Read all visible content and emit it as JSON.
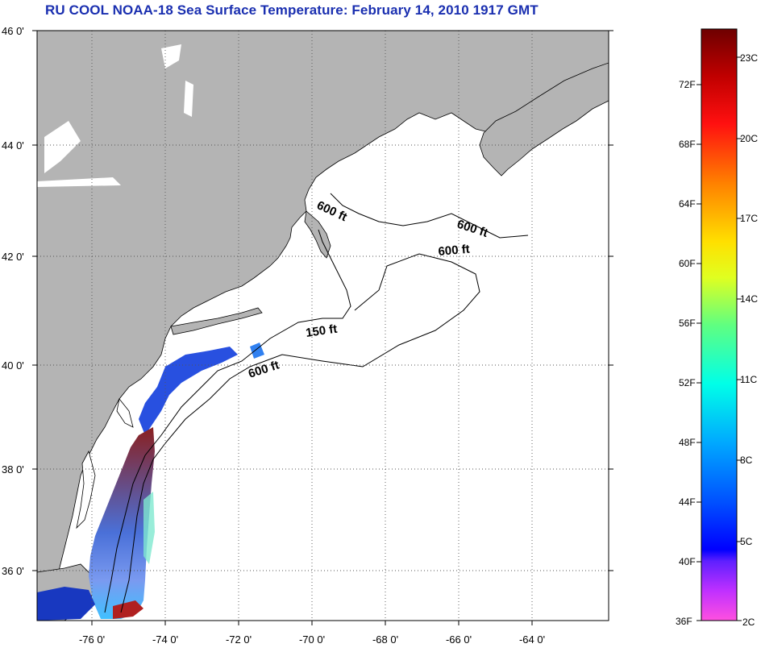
{
  "title": "RU COOL  NOAA-18  Sea Surface Temperature:  February 14, 2010 1917 GMT",
  "map": {
    "lat_labels": [
      "46 0'",
      "44 0'",
      "42 0'",
      "40 0'",
      "38 0'",
      "36 0'"
    ],
    "lon_labels": [
      "-76 0'",
      "-74 0'",
      "-72 0'",
      "-70 0'",
      "-68 0'",
      "-66 0'",
      "-64 0'"
    ],
    "contour_labels": [
      "600 ft",
      "600 ft",
      "600 ft",
      "150 ft",
      "600 ft"
    ],
    "colors": {
      "land": "#b4b4b4",
      "ocean_nodata": "#ffffff",
      "coast": "#000000",
      "grid": "#555555"
    }
  },
  "colorbar": {
    "fahrenheit_labels": [
      "72F",
      "68F",
      "64F",
      "60F",
      "56F",
      "52F",
      "48F",
      "44F",
      "40F",
      "36F"
    ],
    "celsius_labels": [
      "23C",
      "20C",
      "17C",
      "14C",
      "11C",
      "8C",
      "5C",
      "2C"
    ],
    "colors": [
      "#7a0000",
      "#c00000",
      "#ff0000",
      "#ff7a00",
      "#ffd000",
      "#ffff00",
      "#b8ff40",
      "#40ff90",
      "#00ffe0",
      "#00b8ff",
      "#0070ff",
      "#0020ff",
      "#0000ff",
      "#8030ff",
      "#d030ff",
      "#ff40d0",
      "#ff50e8"
    ]
  }
}
